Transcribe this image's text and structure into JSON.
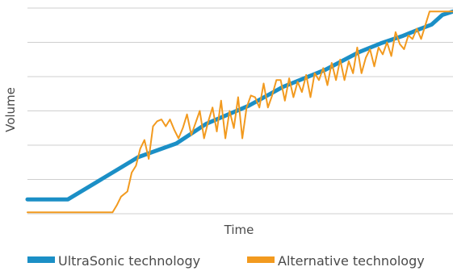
{
  "chart_data": {
    "type": "line",
    "title": "",
    "xlabel": "Time",
    "ylabel": "Volume",
    "xlim": [
      0,
      100
    ],
    "ylim": [
      0,
      6
    ],
    "grid": true,
    "legend_position": "bottom",
    "series": [
      {
        "name": "UltraSonic technology",
        "color": "#1b8fc6",
        "x": [
          0,
          9.5,
          22,
          26,
          35,
          42,
          52,
          60,
          70,
          78,
          83,
          88,
          92,
          95,
          97.5,
          100
        ],
        "y": [
          0.42,
          0.42,
          1.35,
          1.65,
          2.05,
          2.62,
          3.15,
          3.7,
          4.2,
          4.72,
          4.97,
          5.18,
          5.38,
          5.52,
          5.8,
          5.9
        ]
      },
      {
        "name": "Alternative technology",
        "color": "#f29a1f",
        "x": [
          0,
          20,
          21,
          22,
          23.5,
          24.5,
          25.5,
          26.5,
          27.5,
          28.5,
          29.5,
          30.5,
          31.5,
          32.5,
          33.5,
          34.5,
          35.5,
          36.5,
          37.5,
          38.5,
          39.5,
          40.5,
          41.5,
          42.5,
          43.5,
          44.5,
          45.5,
          46.5,
          47.5,
          48.5,
          49.5,
          50.5,
          51.5,
          52.5,
          53.5,
          54.5,
          55.5,
          56.5,
          57.5,
          58.5,
          59.5,
          60.5,
          61.5,
          62.5,
          63.5,
          64.5,
          65.5,
          66.5,
          67.5,
          68.5,
          69.5,
          70.5,
          71.5,
          72.5,
          73.5,
          74.5,
          75.5,
          76.5,
          77.5,
          78.5,
          79.5,
          80.5,
          81.5,
          82.5,
          83.5,
          84.5,
          85.5,
          86.5,
          87.5,
          88.5,
          89.5,
          90.5,
          91.5,
          92.5,
          93.5,
          94.5,
          100
        ],
        "y": [
          0.04,
          0.04,
          0.25,
          0.5,
          0.65,
          1.2,
          1.4,
          1.9,
          2.15,
          1.6,
          2.55,
          2.7,
          2.75,
          2.55,
          2.75,
          2.45,
          2.2,
          2.5,
          2.9,
          2.3,
          2.65,
          3.0,
          2.2,
          2.7,
          3.1,
          2.4,
          3.3,
          2.2,
          3.0,
          2.5,
          3.4,
          2.2,
          3.1,
          3.45,
          3.4,
          3.1,
          3.8,
          3.1,
          3.45,
          3.9,
          3.9,
          3.3,
          3.95,
          3.4,
          3.85,
          3.55,
          4.05,
          3.4,
          4.1,
          3.9,
          4.25,
          3.75,
          4.4,
          3.9,
          4.5,
          3.9,
          4.45,
          4.1,
          4.85,
          4.1,
          4.55,
          4.8,
          4.3,
          4.85,
          4.65,
          5.0,
          4.6,
          5.3,
          4.95,
          4.8,
          5.2,
          5.1,
          5.4,
          5.1,
          5.5,
          5.9,
          5.9
        ]
      }
    ]
  }
}
